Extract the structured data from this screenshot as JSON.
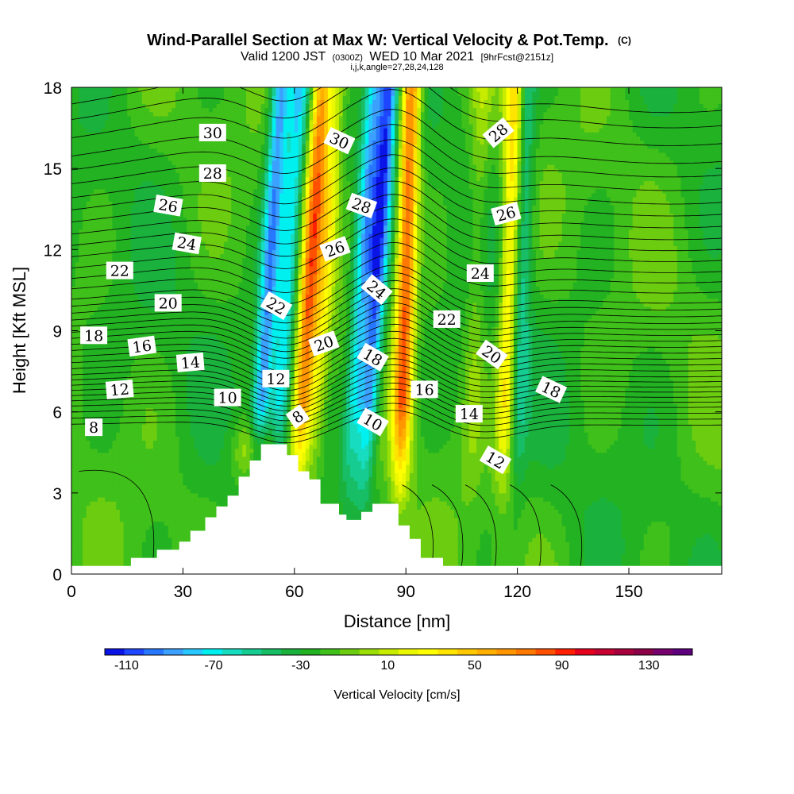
{
  "chart_data": {
    "type": "heatmap",
    "title": "Wind-Parallel Section at Max W: Vertical Velocity & Pot.Temp.",
    "title_mark": "(C)",
    "subtitle_prefix": "Valid 1200 JST",
    "subtitle_utc": "(0300Z)",
    "subtitle_date": "WED 10 Mar 2021",
    "subtitle_fcst": "[9hrFcst@2151z]",
    "subtitle2": "i,j,k,angle=27,28,24,128",
    "xlabel": "Distance [nm]",
    "ylabel": "Height [Kft MSL]",
    "xlim": [
      0,
      175
    ],
    "ylim": [
      0,
      18
    ],
    "xticks": [
      "0",
      "30",
      "60",
      "90",
      "120",
      "150"
    ],
    "xtick_values": [
      0,
      30,
      60,
      90,
      120,
      150
    ],
    "yticks": [
      "0",
      "3",
      "6",
      "9",
      "12",
      "15",
      "18"
    ],
    "ytick_values": [
      0,
      3,
      6,
      9,
      12,
      15,
      18
    ],
    "colorbar": {
      "title": "Vertical Velocity [cm/s]",
      "tick_labels": [
        "-110",
        "-70",
        "-30",
        "10",
        "50",
        "90",
        "130"
      ],
      "tick_values": [
        -110,
        -70,
        -30,
        10,
        50,
        90,
        130
      ],
      "min": -120,
      "max": 150,
      "step": 10,
      "colors": [
        "#0a14e6",
        "#1e46ff",
        "#2878ff",
        "#3ca0ff",
        "#28c8ff",
        "#00f0f0",
        "#18dcc0",
        "#16cc90",
        "#18be66",
        "#1ab23c",
        "#22b222",
        "#3fc01a",
        "#6ccc10",
        "#9ade06",
        "#c8ec00",
        "#ecf800",
        "#ffff00",
        "#ffe400",
        "#ffc800",
        "#ffaf00",
        "#ff9600",
        "#ff7800",
        "#ff5000",
        "#ff1e00",
        "#e6001e",
        "#c80032",
        "#a8003c",
        "#8c0048",
        "#76006e",
        "#5e007e"
      ]
    },
    "w_features": [
      {
        "x": 51,
        "value": -80
      },
      {
        "x": 56,
        "value": -60
      },
      {
        "x": 62,
        "value": 100
      },
      {
        "x": 66,
        "value": 40
      },
      {
        "x": 76,
        "value": -60
      },
      {
        "x": 80,
        "value": -90
      },
      {
        "x": 89,
        "value": 110
      },
      {
        "x": 108,
        "value": 20
      },
      {
        "x": 117,
        "value": 70
      },
      {
        "x": 120,
        "value": -40
      }
    ],
    "terrain": [
      [
        0,
        0.3
      ],
      [
        16,
        0.3
      ],
      [
        16,
        0.6
      ],
      [
        23,
        0.6
      ],
      [
        23,
        0.9
      ],
      [
        29,
        0.9
      ],
      [
        29,
        1.2
      ],
      [
        32,
        1.2
      ],
      [
        32,
        1.6
      ],
      [
        36,
        1.6
      ],
      [
        36,
        2.1
      ],
      [
        39,
        2.1
      ],
      [
        39,
        2.5
      ],
      [
        42,
        2.5
      ],
      [
        42,
        2.9
      ],
      [
        45,
        2.9
      ],
      [
        45,
        3.6
      ],
      [
        48,
        3.6
      ],
      [
        48,
        4.2
      ],
      [
        51,
        4.2
      ],
      [
        51,
        4.8
      ],
      [
        58,
        4.8
      ],
      [
        58,
        4.4
      ],
      [
        61,
        4.4
      ],
      [
        61,
        3.8
      ],
      [
        64,
        3.8
      ],
      [
        64,
        3.5
      ],
      [
        67,
        3.5
      ],
      [
        67,
        2.6
      ],
      [
        72,
        2.6
      ],
      [
        72,
        2.2
      ],
      [
        74,
        2.2
      ],
      [
        74,
        2.0
      ],
      [
        78,
        2.0
      ],
      [
        78,
        2.3
      ],
      [
        81,
        2.3
      ],
      [
        81,
        2.6
      ],
      [
        88,
        2.6
      ],
      [
        88,
        1.8
      ],
      [
        91,
        1.8
      ],
      [
        91,
        1.3
      ],
      [
        94,
        1.3
      ],
      [
        94,
        0.6
      ],
      [
        100,
        0.6
      ],
      [
        100,
        0.3
      ],
      [
        175,
        0.3
      ]
    ],
    "isentropes": [
      {
        "value": 8,
        "y": 5.6
      },
      {
        "value": 10,
        "y": 6.3
      },
      {
        "value": 12,
        "y": 6.9
      },
      {
        "value": 14,
        "y": 7.5
      },
      {
        "value": 16,
        "y": 8.2
      },
      {
        "value": 18,
        "y": 8.9
      },
      {
        "value": 20,
        "y": 9.6
      },
      {
        "value": 22,
        "y": 10.4
      },
      {
        "value": 24,
        "y": 11.6
      },
      {
        "value": 26,
        "y": 12.9
      },
      {
        "value": 28,
        "y": 14.3
      },
      {
        "value": 30,
        "y": 15.9
      }
    ],
    "contour_labels": [
      {
        "text": "30",
        "x": 38,
        "y": 16.3,
        "rot": 0
      },
      {
        "text": "28",
        "x": 38,
        "y": 14.8,
        "rot": 0
      },
      {
        "text": "26",
        "x": 26,
        "y": 13.6,
        "rot": 10
      },
      {
        "text": "24",
        "x": 31,
        "y": 12.2,
        "rot": 10
      },
      {
        "text": "22",
        "x": 13,
        "y": 11.2,
        "rot": 0
      },
      {
        "text": "20",
        "x": 26,
        "y": 10.0,
        "rot": 0
      },
      {
        "text": "18",
        "x": 6,
        "y": 8.8,
        "rot": 0
      },
      {
        "text": "16",
        "x": 19,
        "y": 8.4,
        "rot": -8
      },
      {
        "text": "14",
        "x": 32,
        "y": 7.8,
        "rot": -5
      },
      {
        "text": "12",
        "x": 13,
        "y": 6.8,
        "rot": -5
      },
      {
        "text": "10",
        "x": 42,
        "y": 6.5,
        "rot": 0
      },
      {
        "text": "8",
        "x": 6,
        "y": 5.4,
        "rot": 0
      },
      {
        "text": "12",
        "x": 55,
        "y": 7.2,
        "rot": 0
      },
      {
        "text": "8",
        "x": 61,
        "y": 5.8,
        "rot": -35
      },
      {
        "text": "22",
        "x": 55,
        "y": 9.9,
        "rot": 30
      },
      {
        "text": "20",
        "x": 68,
        "y": 8.5,
        "rot": -20
      },
      {
        "text": "26",
        "x": 71,
        "y": 12.0,
        "rot": -20
      },
      {
        "text": "28",
        "x": 78,
        "y": 13.6,
        "rot": 20
      },
      {
        "text": "30",
        "x": 72,
        "y": 16.0,
        "rot": 25
      },
      {
        "text": "24",
        "x": 82,
        "y": 10.5,
        "rot": 40
      },
      {
        "text": "18",
        "x": 81,
        "y": 8.0,
        "rot": 30
      },
      {
        "text": "10",
        "x": 81,
        "y": 5.6,
        "rot": 30
      },
      {
        "text": "16",
        "x": 95,
        "y": 6.8,
        "rot": 0
      },
      {
        "text": "22",
        "x": 101,
        "y": 9.4,
        "rot": 0
      },
      {
        "text": "24",
        "x": 110,
        "y": 11.1,
        "rot": 0
      },
      {
        "text": "26",
        "x": 117,
        "y": 13.3,
        "rot": -15
      },
      {
        "text": "28",
        "x": 115,
        "y": 16.3,
        "rot": -40
      },
      {
        "text": "20",
        "x": 113,
        "y": 8.1,
        "rot": 35
      },
      {
        "text": "14",
        "x": 107,
        "y": 5.9,
        "rot": 0
      },
      {
        "text": "12",
        "x": 114,
        "y": 4.2,
        "rot": 30
      },
      {
        "text": "18",
        "x": 129,
        "y": 6.8,
        "rot": 25
      }
    ]
  }
}
